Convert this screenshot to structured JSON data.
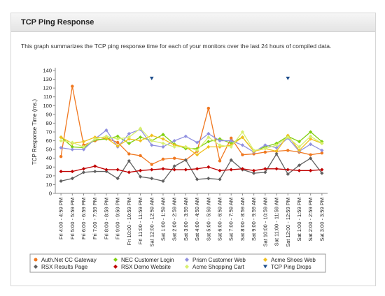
{
  "panel": {
    "title": "TCP Ping Response",
    "description": "This graph summarizes the TCP ping response time for each of your monitors over the last 24 hours of compiled data."
  },
  "chart_data": {
    "type": "line",
    "ylabel": "TCP Response Time (ms.)",
    "ylim": [
      0,
      140
    ],
    "yticks": [
      0,
      10,
      20,
      30,
      40,
      50,
      60,
      70,
      80,
      90,
      100,
      110,
      120,
      130,
      140
    ],
    "grid": false,
    "categories": [
      "Fri 4:00 - 4:59 PM",
      "Fri 5:00 - 5:59 PM",
      "Fri 6:00 - 6:59 PM",
      "Fri 7:00 - 7:59 PM",
      "Fri 8:00 - 8:59 PM",
      "Fri 9:00 - 9:59 PM",
      "Fri 10:00 - 10:59 PM",
      "Fri 11:00 - 11:59 PM",
      "Sat 12:00 - 12:59 AM",
      "Sat 1:00 - 1:59 AM",
      "Sat 2:00 - 2:59 AM",
      "Sat 3:00 - 3:59 AM",
      "Sat 4:00 - 4:59 AM",
      "Sat 5:00 - 5:59 AM",
      "Sat 6:00 - 6:59 AM",
      "Sat 7:00 - 7:59 AM",
      "Sat 8:00 - 8:59 AM",
      "Sat 9:00 - 9:59 AM",
      "Sat 10:00 - 10:59 AM",
      "Sat 11:00 - 11:59 AM",
      "Sat 12:00 - 12:59 PM",
      "Sat 1:00 - 1:59 PM",
      "Sat 2:00 - 2:59 PM",
      "Sat 3:00 - 3:59 PM"
    ],
    "series": [
      {
        "name": "Auth.Net CC Gateway",
        "color": "#f07820",
        "marker": "circle",
        "values": [
          42,
          122,
          55,
          60,
          63,
          58,
          45,
          43,
          33,
          39,
          40,
          38,
          48,
          97,
          37,
          63,
          44,
          45,
          47,
          48,
          49,
          47,
          44,
          46
        ]
      },
      {
        "name": "NEC Customer Login",
        "color": "#80d010",
        "marker": "diamond",
        "values": [
          64,
          53,
          52,
          61,
          62,
          65,
          57,
          64,
          60,
          67,
          56,
          51,
          51,
          59,
          62,
          57,
          64,
          48,
          53,
          57,
          65,
          59,
          70,
          59
        ]
      },
      {
        "name": "Prism Customer Web",
        "color": "#9090e0",
        "marker": "diamond",
        "values": [
          52,
          50,
          50,
          62,
          72,
          53,
          68,
          73,
          55,
          53,
          60,
          65,
          58,
          68,
          60,
          60,
          55,
          47,
          55,
          52,
          63,
          48,
          56,
          49
        ]
      },
      {
        "name": "Acme Shoes Web",
        "color": "#f0c020",
        "marker": "diamond",
        "values": [
          64,
          57,
          59,
          64,
          63,
          54,
          62,
          60,
          66,
          62,
          55,
          53,
          44,
          53,
          53,
          55,
          64,
          48,
          51,
          48,
          66,
          49,
          62,
          57
        ]
      },
      {
        "name": "RSX Results Page",
        "color": "#606060",
        "marker": "diamond",
        "values": [
          14,
          17,
          24,
          25,
          25,
          17,
          37,
          19,
          17,
          14,
          31,
          38,
          16,
          17,
          16,
          38,
          27,
          23,
          24,
          45,
          22,
          32,
          40,
          23
        ]
      },
      {
        "name": "RSX Demo Website",
        "color": "#c00000",
        "marker": "diamond",
        "values": [
          25,
          25,
          28,
          31,
          27,
          27,
          24,
          26,
          27,
          28,
          27,
          27,
          28,
          30,
          26,
          27,
          28,
          26,
          28,
          28,
          27,
          26,
          26,
          27
        ]
      },
      {
        "name": "Acme Shopping Cart",
        "color": "#d8f070",
        "marker": "diamond",
        "values": [
          60,
          58,
          53,
          62,
          65,
          62,
          64,
          74,
          60,
          57,
          53,
          53,
          49,
          64,
          55,
          53,
          70,
          49,
          51,
          55,
          64,
          53,
          65,
          57
        ]
      }
    ],
    "drops": {
      "name": "TCP Ping Drops",
      "color": "#1f4e8c",
      "categories": [
        8,
        20
      ],
      "value": 131
    }
  }
}
